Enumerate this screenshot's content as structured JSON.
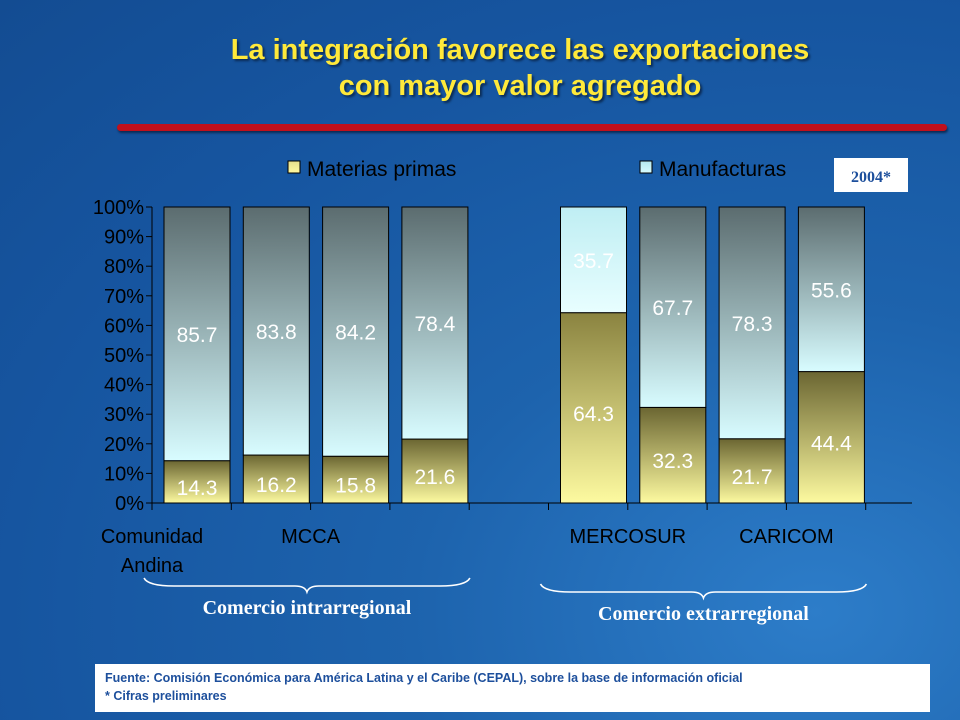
{
  "title": {
    "line1": "La integración favorece las exportaciones",
    "line2": "con mayor valor agregado"
  },
  "year_badge": "2004*",
  "colors": {
    "accent_red": "#c0101c",
    "title_yellow": "#ffe93a",
    "background": "#1d63ad"
  },
  "chart_data": {
    "type": "bar",
    "stacked": true,
    "categories": [
      "Comunidad Andina",
      "MCCA",
      "",
      "",
      "",
      "MERCOSUR",
      "",
      "CARICOM"
    ],
    "category_labels": [
      {
        "text": [
          "Comunidad",
          "Andina"
        ],
        "slot": 0
      },
      {
        "text": [
          "MCCA"
        ],
        "slot": 2
      },
      {
        "text": [
          "MERCOSUR"
        ],
        "slot": 6
      },
      {
        "text": [
          "CARICOM"
        ],
        "slot": 8
      }
    ],
    "bars": [
      {
        "slot": 0,
        "materias": 14.3,
        "manufacturas": 85.7,
        "style": "intra"
      },
      {
        "slot": 1,
        "materias": 16.2,
        "manufacturas": 83.8,
        "style": "intra"
      },
      {
        "slot": 2,
        "materias": 15.8,
        "manufacturas": 84.2,
        "style": "intra"
      },
      {
        "slot": 3,
        "materias": 21.6,
        "manufacturas": 78.4,
        "style": "intra"
      },
      {
        "slot": 5,
        "materias": 64.3,
        "manufacturas": 35.7,
        "style": "extra"
      },
      {
        "slot": 6,
        "materias": 32.3,
        "manufacturas": 67.7,
        "style": "intra"
      },
      {
        "slot": 7,
        "materias": 21.7,
        "manufacturas": 78.3,
        "style": "intra"
      },
      {
        "slot": 8,
        "materias": 44.4,
        "manufacturas": 55.6,
        "style": "intra"
      }
    ],
    "series": [
      {
        "name": "Materias primas"
      },
      {
        "name": "Manufacturas"
      }
    ],
    "y_ticks": [
      "0%",
      "10%",
      "20%",
      "30%",
      "40%",
      "50%",
      "60%",
      "70%",
      "80%",
      "90%",
      "100%"
    ],
    "ylim": [
      0,
      100
    ],
    "groups": [
      {
        "label": "Comercio  intrarregional",
        "from_slot": 0,
        "to_slot": 3
      },
      {
        "label": "Comercio  extrarregional",
        "from_slot": 5,
        "to_slot": 8
      }
    ]
  },
  "footer": {
    "source": "Fuente: Comisión Económica para América Latina y el Caribe (CEPAL), sobre la base de información oficial",
    "note": "*  Cifras preliminares"
  }
}
